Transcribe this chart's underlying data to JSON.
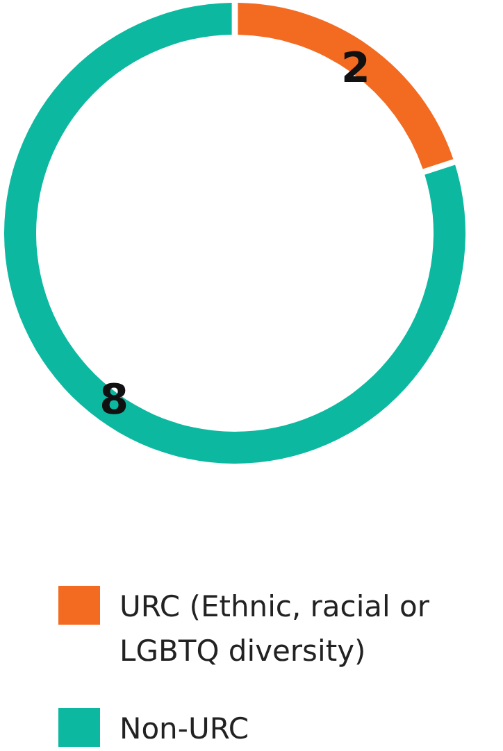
{
  "chart_data": {
    "type": "donut",
    "categories": [
      "URC (Ethnic, racial or LGBTQ diversity)",
      "Non-URC"
    ],
    "values": [
      2,
      8
    ],
    "colors": [
      "#f26b21",
      "#0cb9a0"
    ],
    "data_labels": true,
    "legend": "bottom"
  }
}
